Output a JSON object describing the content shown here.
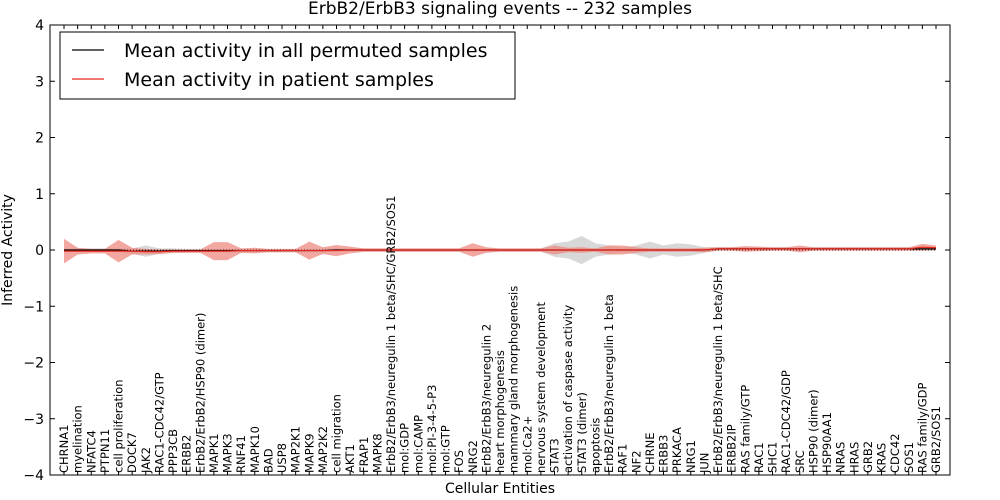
{
  "chart_data": {
    "type": "line",
    "title": "ErbB2/ErbB3 signaling events -- 232 samples",
    "xlabel": "Cellular Entities",
    "ylabel": "Inferred Activity",
    "ylim": [
      -4,
      4
    ],
    "yticks": [
      "−4",
      "−3",
      "−2",
      "−1",
      "0",
      "1",
      "2",
      "3",
      "4"
    ],
    "grid": false,
    "legend_position": "top-left",
    "colors": {
      "permuted": "#000000",
      "patient": "#e8281e",
      "patient_band": "#ee8a82",
      "permuted_band": "#c8c8c8"
    },
    "categories": [
      "CHRNA1",
      "myelination",
      "NFATC4",
      "PTPN11",
      "cell proliferation",
      "DOCK7",
      "JAK2",
      "RAC1-CDC42/GTP",
      "PPP3CB",
      "ERBB2",
      "ErbB2/ErbB2/HSP90 (dimer)",
      "MAPK1",
      "MAPK3",
      "RNF41",
      "MAPK10",
      "BAD",
      "USP8",
      "MAP2K1",
      "MAPK9",
      "MAP2K2",
      "cell migration",
      "AKT1",
      "FRAP1",
      "MAPK8",
      "ErbB2/ErbB3/neuregulin 1 beta/SHC/GRB2/SOS1",
      "mol:GDP",
      "mol:CAMP",
      "mol:PI-3-4-5-P3",
      "mol:GTP",
      "FOS",
      "NRG2",
      "ErbB2/ErbB3/neuregulin 2",
      "heart morphogenesis",
      "mammary gland morphogenesis",
      "mol:Ca2+",
      "nervous system development",
      "STAT3",
      "activation of caspase activity",
      "STAT3 (dimer)",
      "apoptosis",
      "ErbB2/ErbB3/neuregulin 1 beta",
      "RAF1",
      "NF2",
      "CHRNE",
      "ERBB3",
      "PRKACA",
      "NRG1",
      "JUN",
      "ErbB2/ErbB3/neuregulin 1 beta/SHC",
      "ERBB2IP",
      "RAS family/GTP",
      "RAC1",
      "SHC1",
      "RAC1-CDC42/GDP",
      "SRC",
      "HSP90 (dimer)",
      "HSP90AA1",
      "NRAS",
      "HRAS",
      "GRB2",
      "KRAS",
      "CDC42",
      "SOS1",
      "RAS family/GDP",
      "GRB2/SOS1"
    ],
    "series": [
      {
        "name": "Mean activity in all permuted samples",
        "values": [
          0,
          0,
          0,
          0,
          0,
          -0.02,
          -0.02,
          -0.02,
          -0.01,
          -0.01,
          -0.01,
          -0.01,
          -0.01,
          -0.01,
          -0.01,
          -0.01,
          -0.01,
          -0.01,
          -0.01,
          -0.01,
          0,
          0,
          0,
          0,
          0,
          0,
          0,
          0,
          0,
          0,
          0,
          0,
          0,
          0,
          0,
          0,
          0,
          0,
          0,
          0,
          0,
          0,
          0,
          0,
          0,
          0,
          0,
          0,
          0.02,
          0.02,
          0.02,
          0.02,
          0.02,
          0.02,
          0.02,
          0.02,
          0.02,
          0.02,
          0.02,
          0.02,
          0.02,
          0.02,
          0.02,
          0.02,
          0.02
        ],
        "band": [
          0.03,
          0.03,
          0.03,
          0.03,
          0.03,
          0.05,
          0.1,
          0.05,
          0.04,
          0.03,
          0.03,
          0.03,
          0.03,
          0.03,
          0.03,
          0.03,
          0.03,
          0.03,
          0.03,
          0.03,
          0.03,
          0.03,
          0.03,
          0.03,
          0.03,
          0.03,
          0.03,
          0.03,
          0.03,
          0.03,
          0.03,
          0.03,
          0.03,
          0.03,
          0.03,
          0.03,
          0.12,
          0.15,
          0.25,
          0.12,
          0.08,
          0.04,
          0.08,
          0.15,
          0.08,
          0.12,
          0.1,
          0.05,
          0.03,
          0.03,
          0.03,
          0.03,
          0.03,
          0.03,
          0.03,
          0.03,
          0.03,
          0.03,
          0.03,
          0.03,
          0.03,
          0.03,
          0.03,
          0.03,
          0.03
        ]
      },
      {
        "name": "Mean activity in patient samples",
        "values": [
          -0.02,
          -0.02,
          -0.02,
          -0.02,
          -0.02,
          -0.02,
          -0.03,
          -0.03,
          -0.02,
          -0.02,
          -0.02,
          -0.02,
          -0.02,
          -0.01,
          -0.01,
          -0.01,
          -0.01,
          -0.01,
          -0.01,
          -0.01,
          -0.01,
          0,
          0,
          0,
          0,
          0,
          0,
          0,
          0,
          0,
          0,
          0,
          0,
          0,
          0,
          0,
          0,
          0,
          0,
          0,
          0,
          0,
          0,
          0,
          0,
          0,
          0,
          0,
          0.02,
          0.02,
          0.02,
          0.02,
          0.02,
          0.02,
          0.02,
          0.02,
          0.02,
          0.02,
          0.02,
          0.02,
          0.02,
          0.02,
          0.02,
          0.05,
          0.04
        ],
        "band": [
          0.22,
          0.06,
          0.04,
          0.04,
          0.2,
          0.06,
          0.05,
          0.04,
          0.03,
          0.03,
          0.03,
          0.16,
          0.16,
          0.04,
          0.05,
          0.03,
          0.03,
          0.03,
          0.16,
          0.06,
          0.1,
          0.06,
          0.03,
          0.03,
          0.03,
          0.03,
          0.03,
          0.03,
          0.03,
          0.03,
          0.12,
          0.05,
          0.03,
          0.03,
          0.03,
          0.03,
          0.08,
          0.04,
          0.05,
          0.03,
          0.08,
          0.08,
          0.05,
          0.03,
          0.03,
          0.03,
          0.03,
          0.04,
          0.03,
          0.03,
          0.05,
          0.04,
          0.03,
          0.03,
          0.06,
          0.03,
          0.03,
          0.03,
          0.03,
          0.03,
          0.03,
          0.03,
          0.03,
          0.06,
          0.04
        ]
      }
    ]
  }
}
